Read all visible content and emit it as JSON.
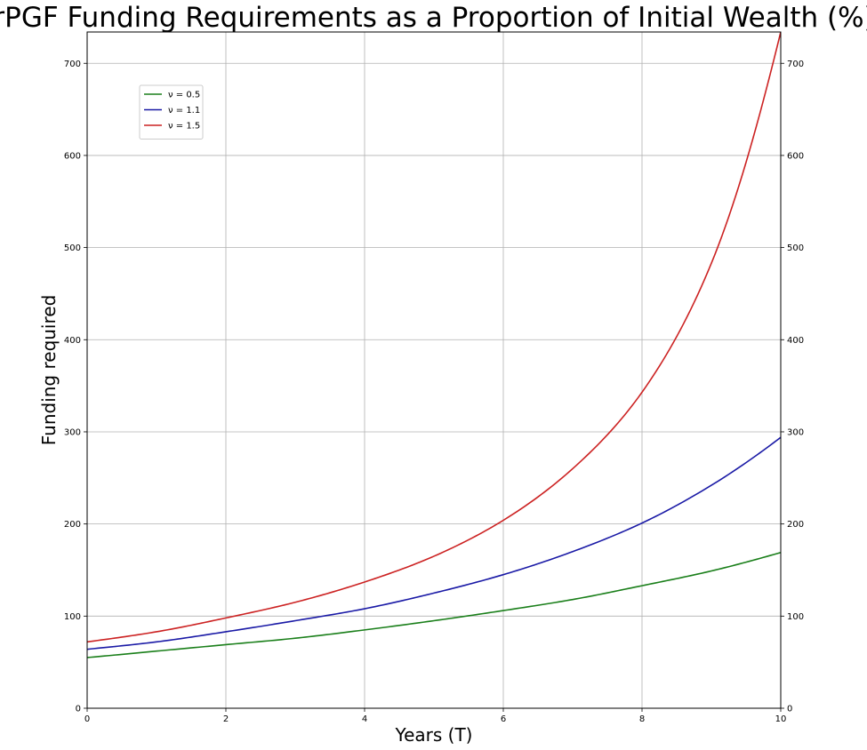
{
  "chart_data": {
    "type": "line",
    "title": "rPGF Funding Requirements as a Proportion of Initial Wealth (%)",
    "xlabel": "Years (T)",
    "ylabel": "Funding required",
    "xlim": [
      0,
      10
    ],
    "ylim": [
      0,
      734
    ],
    "xticks": [
      "0",
      "2",
      "4",
      "6",
      "8",
      "10"
    ],
    "yticks": [
      "0",
      "100",
      "200",
      "300",
      "400",
      "500",
      "600",
      "700"
    ],
    "grid": true,
    "legend_position": "upper-left",
    "series": [
      {
        "name": "ν = 0.5",
        "color": "#1a7f1a",
        "x": [
          0,
          1,
          2,
          3,
          4,
          5,
          6,
          7,
          8,
          9,
          10
        ],
        "y": [
          55,
          62,
          69,
          76,
          85,
          95,
          106,
          118,
          133,
          149,
          169
        ]
      },
      {
        "name": "ν = 1.1",
        "color": "#1a1aa6",
        "x": [
          0,
          1,
          2,
          3,
          4,
          5,
          6,
          7,
          8,
          9,
          10
        ],
        "y": [
          64,
          72,
          83,
          95,
          108,
          125,
          145,
          170,
          201,
          242,
          294
        ]
      },
      {
        "name": "ν = 1.5",
        "color": "#cc2222",
        "x": [
          0,
          1,
          2,
          3,
          4,
          5,
          6,
          7,
          8,
          9,
          10
        ],
        "y": [
          72,
          83,
          98,
          115,
          137,
          165,
          204,
          260,
          343,
          483,
          734
        ]
      }
    ]
  }
}
